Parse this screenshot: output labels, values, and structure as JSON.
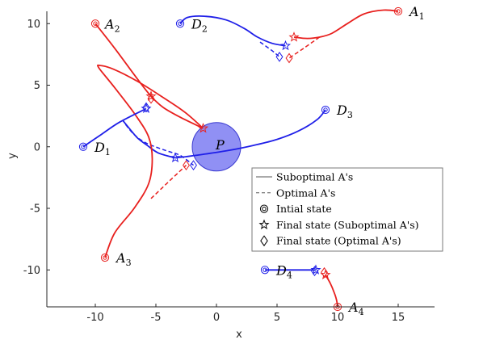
{
  "chart_data": {
    "type": "line",
    "xlabel": "x",
    "ylabel": "y",
    "xlim": [
      -14,
      18
    ],
    "ylim": [
      -13,
      11
    ],
    "xticks": [
      -10,
      -5,
      0,
      5,
      10,
      15
    ],
    "yticks": [
      -10,
      -5,
      0,
      5,
      10
    ],
    "grid": false,
    "legend_position": "lower-right",
    "colors": {
      "agents": "#e8201e",
      "defenders": "#1f1fe8",
      "protected_region": "#6b6bf0",
      "legend_line": "#555555"
    },
    "protected_region": {
      "label": "P",
      "center": [
        0,
        0
      ],
      "radius": 2.0
    },
    "agents": [
      {
        "label": "A",
        "sub": "1",
        "start": [
          15,
          11
        ],
        "final_subopt": [
          6.4,
          8.9
        ],
        "final_opt": [
          6.0,
          7.2
        ],
        "path": [
          [
            15,
            11
          ],
          [
            13.8,
            11.1
          ],
          [
            12.2,
            10.8
          ],
          [
            10.8,
            10.0
          ],
          [
            9.5,
            9.2
          ],
          [
            8.5,
            8.9
          ],
          [
            7.5,
            8.8
          ],
          [
            6.4,
            8.9
          ]
        ],
        "dashed": [
          [
            8.5,
            8.9
          ],
          [
            7.2,
            8.0
          ],
          [
            6.0,
            7.2
          ]
        ]
      },
      {
        "label": "A",
        "sub": "2",
        "start": [
          -10,
          10
        ],
        "final_subopt": [
          -5.4,
          4.1
        ],
        "final_opt": [
          -5.4,
          3.9
        ],
        "path": [
          [
            -10,
            10
          ],
          [
            -8.4,
            8.0
          ],
          [
            -6.6,
            5.6
          ],
          [
            -5.4,
            4.1
          ],
          [
            -4.4,
            3.2
          ],
          [
            -3.0,
            2.4
          ],
          [
            -1.1,
            1.5
          ]
        ],
        "dashed": []
      },
      {
        "label": "A",
        "sub": "3",
        "start": [
          -9.2,
          -9
        ],
        "final_subopt": [
          -1.1,
          1.5
        ],
        "final_opt": [
          -2.5,
          -1.5
        ],
        "path": [
          [
            -9.2,
            -9
          ],
          [
            -8.4,
            -7.0
          ],
          [
            -6.8,
            -5.0
          ],
          [
            -5.6,
            -3.0
          ],
          [
            -5.3,
            -1.0
          ],
          [
            -5.6,
            0.8
          ],
          [
            -6.7,
            2.6
          ],
          [
            -8.4,
            4.8
          ],
          [
            -9.7,
            6.4
          ],
          [
            -9.6,
            6.6
          ],
          [
            -8.5,
            6.3
          ],
          [
            -6.5,
            5.3
          ],
          [
            -4.4,
            4.0
          ],
          [
            -2.6,
            2.8
          ],
          [
            -1.1,
            1.5
          ]
        ],
        "dashed": [
          [
            -5.4,
            -4.2
          ],
          [
            -3.8,
            -2.7
          ],
          [
            -2.5,
            -1.5
          ]
        ]
      },
      {
        "label": "A",
        "sub": "4",
        "start": [
          10,
          -13
        ],
        "final_subopt": [
          9.0,
          -10.4
        ],
        "final_opt": [
          8.9,
          -10.2
        ],
        "path": [
          [
            10,
            -13
          ],
          [
            9.9,
            -12.4
          ],
          [
            9.7,
            -11.8
          ],
          [
            9.4,
            -11.1
          ],
          [
            9.0,
            -10.4
          ]
        ],
        "dashed": []
      }
    ],
    "defenders": [
      {
        "label": "D",
        "sub": "1",
        "start": [
          -11,
          0
        ],
        "final_subopt": [
          -5.8,
          3.1
        ],
        "final_opt": [
          -5.8,
          3.2
        ],
        "path": [
          [
            -11,
            0
          ],
          [
            -9.5,
            1.0
          ],
          [
            -8.0,
            2.0
          ],
          [
            -5.8,
            3.1
          ]
        ],
        "dashed": []
      },
      {
        "label": "D",
        "sub": "2",
        "start": [
          -3,
          10
        ],
        "final_subopt": [
          5.7,
          8.2
        ],
        "final_opt": [
          5.2,
          7.3
        ],
        "path": [
          [
            -3,
            10
          ],
          [
            -2.4,
            10.5
          ],
          [
            -1.0,
            10.6
          ],
          [
            0.8,
            10.3
          ],
          [
            2.3,
            9.6
          ],
          [
            3.4,
            8.9
          ],
          [
            4.6,
            8.4
          ],
          [
            5.7,
            8.2
          ]
        ],
        "dashed": [
          [
            3.6,
            8.5
          ],
          [
            4.6,
            7.8
          ],
          [
            5.2,
            7.3
          ]
        ]
      },
      {
        "label": "D",
        "sub": "3",
        "start": [
          9,
          3
        ],
        "final_subopt": [
          -3.4,
          -0.9
        ],
        "final_opt": [
          -1.9,
          -1.5
        ],
        "path": [
          [
            9,
            3
          ],
          [
            8.3,
            2.2
          ],
          [
            6.8,
            1.3
          ],
          [
            5.0,
            0.6
          ],
          [
            3.0,
            0.1
          ],
          [
            1.0,
            -0.3
          ],
          [
            -1.0,
            -0.6
          ],
          [
            -2.5,
            -0.8
          ],
          [
            -3.4,
            -0.9
          ]
        ],
        "dashed": []
      },
      {
        "label": "D",
        "sub": "4",
        "start": [
          4,
          -10
        ],
        "final_subopt": [
          8.2,
          -10
        ],
        "final_opt": [
          8.1,
          -10.1
        ],
        "path": [
          [
            4,
            -10
          ],
          [
            6.0,
            -10
          ],
          [
            8.2,
            -10
          ]
        ],
        "dashed": []
      }
    ],
    "extra_defender_paths": [
      {
        "path": [
          [
            -7.7,
            2.1
          ],
          [
            -7.2,
            1.5
          ],
          [
            -6.5,
            0.7
          ],
          [
            -5.7,
            0.1
          ],
          [
            -4.8,
            -0.5
          ],
          [
            -3.4,
            -0.9
          ]
        ]
      },
      {
        "path": [
          [
            -7.5,
            1.8
          ],
          [
            -6.8,
            1.0
          ],
          [
            -5.8,
            0.3
          ],
          [
            -4.2,
            -0.3
          ],
          [
            -3.0,
            -0.7
          ],
          [
            -1.9,
            -1.5
          ]
        ],
        "dashed": true
      }
    ],
    "legend": [
      {
        "marker": "solid-line",
        "label": "Suboptimal A's"
      },
      {
        "marker": "dashed-line",
        "label": "Optimal A's"
      },
      {
        "marker": "double-circle",
        "label": "Intial state"
      },
      {
        "marker": "star",
        "label": "Final state (Suboptimal A's)"
      },
      {
        "marker": "diamond",
        "label": "Final state (Optimal A's)"
      }
    ]
  }
}
